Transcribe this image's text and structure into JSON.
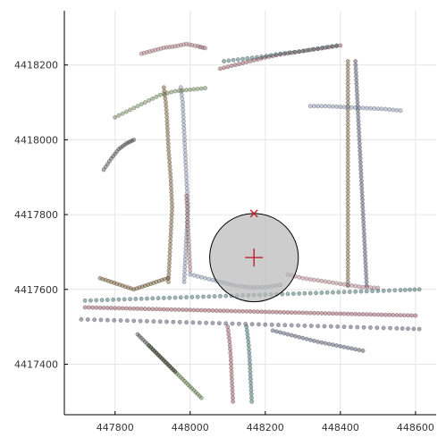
{
  "chart_data": {
    "type": "scatter",
    "title": "",
    "xlabel": "",
    "ylabel": "",
    "xlim": [
      447665,
      448655
    ],
    "ylim": [
      4417265,
      4418345
    ],
    "grid": true,
    "legend": "none",
    "x_ticks": [
      447800,
      448000,
      448200,
      448400,
      448600
    ],
    "y_ticks": [
      4417400,
      4417600,
      4417800,
      4418000,
      4418200
    ],
    "x_tick_labels": [
      "447800",
      "448000",
      "448200",
      "448400",
      "448600"
    ],
    "y_tick_labels": [
      "4417400",
      "4417600",
      "4417800",
      "4418000",
      "4418200"
    ],
    "point_colors": [
      "#8f3b4a",
      "#1f5c5a",
      "#3a3a5a",
      "#6b4a1a",
      "#7a8aa8",
      "#b07080",
      "#5a7a3a",
      "#404040"
    ],
    "series": [
      {
        "values": [
          [
            447720,
            4417552
          ],
          [
            447760,
            4417551
          ],
          [
            447800,
            4417550
          ],
          [
            447840,
            4417549
          ],
          [
            447880,
            4417548
          ],
          [
            447920,
            4417547
          ],
          [
            447960,
            4417546
          ],
          [
            448000,
            4417545
          ],
          [
            448040,
            4417544
          ],
          [
            448080,
            4417543
          ],
          [
            448120,
            4417542
          ],
          [
            448160,
            4417541
          ],
          [
            448200,
            4417540
          ],
          [
            448240,
            4417539
          ],
          [
            448280,
            4417538
          ],
          [
            448320,
            4417537
          ],
          [
            448360,
            4417536
          ],
          [
            448400,
            4417535
          ],
          [
            448440,
            4417534
          ],
          [
            448480,
            4417533
          ],
          [
            448520,
            4417532
          ],
          [
            448560,
            4417531
          ],
          [
            448600,
            4417530
          ]
        ]
      },
      {
        "values": [
          [
            447720,
            4417570
          ],
          [
            447780,
            4417572
          ],
          [
            447840,
            4417574
          ],
          [
            447900,
            4417576
          ],
          [
            447960,
            4417578
          ],
          [
            448020,
            4417580
          ],
          [
            448080,
            4417582
          ],
          [
            448140,
            4417584
          ],
          [
            448200,
            4417586
          ],
          [
            448260,
            4417588
          ],
          [
            448320,
            4417590
          ],
          [
            448380,
            4417592
          ],
          [
            448440,
            4417594
          ],
          [
            448500,
            4417596
          ],
          [
            448560,
            4417598
          ],
          [
            448610,
            4417600
          ]
        ]
      },
      {
        "values": [
          [
            447710,
            4417520
          ],
          [
            447780,
            4417518
          ],
          [
            447850,
            4417516
          ],
          [
            447920,
            4417514
          ],
          [
            447990,
            4417512
          ],
          [
            448060,
            4417510
          ],
          [
            448130,
            4417508
          ],
          [
            448200,
            4417506
          ],
          [
            448270,
            4417504
          ],
          [
            448340,
            4417502
          ],
          [
            448410,
            4417500
          ],
          [
            448480,
            4417498
          ],
          [
            448550,
            4417496
          ],
          [
            448610,
            4417494
          ]
        ]
      },
      {
        "values": [
          [
            447930,
            4418140
          ],
          [
            447935,
            4418100
          ],
          [
            447938,
            4418060
          ],
          [
            447940,
            4418020
          ],
          [
            447942,
            4417980
          ],
          [
            447945,
            4417940
          ],
          [
            447948,
            4417900
          ],
          [
            447950,
            4417860
          ],
          [
            447952,
            4417820
          ],
          [
            447950,
            4417780
          ],
          [
            447948,
            4417740
          ],
          [
            447946,
            4417700
          ],
          [
            447944,
            4417660
          ],
          [
            447942,
            4417620
          ]
        ]
      },
      {
        "values": [
          [
            447975,
            4418140
          ],
          [
            447980,
            4418100
          ],
          [
            447982,
            4418060
          ],
          [
            447984,
            4418020
          ],
          [
            447986,
            4417980
          ],
          [
            447988,
            4417940
          ],
          [
            447990,
            4417900
          ],
          [
            447992,
            4417860
          ],
          [
            447994,
            4417820
          ],
          [
            447992,
            4417780
          ],
          [
            447990,
            4417740
          ],
          [
            447988,
            4417700
          ],
          [
            447986,
            4417660
          ],
          [
            447984,
            4417620
          ]
        ]
      },
      {
        "values": [
          [
            447870,
            4418230
          ],
          [
            447900,
            4418238
          ],
          [
            447930,
            4418246
          ],
          [
            447960,
            4418250
          ],
          [
            447990,
            4418256
          ],
          [
            448020,
            4418250
          ],
          [
            448040,
            4418245
          ]
        ]
      },
      {
        "values": [
          [
            447800,
            4418060
          ],
          [
            447840,
            4418080
          ],
          [
            447880,
            4418100
          ],
          [
            447920,
            4418120
          ],
          [
            447960,
            4418130
          ],
          [
            448000,
            4418134
          ],
          [
            448040,
            4418138
          ]
        ]
      },
      {
        "values": [
          [
            447770,
            4417920
          ],
          [
            447790,
            4417950
          ],
          [
            447810,
            4417975
          ],
          [
            447830,
            4417990
          ],
          [
            447850,
            4418000
          ]
        ]
      },
      {
        "values": [
          [
            448080,
            4418190
          ],
          [
            448120,
            4418200
          ],
          [
            448160,
            4418210
          ],
          [
            448200,
            4418220
          ],
          [
            448240,
            4418228
          ],
          [
            448280,
            4418234
          ],
          [
            448320,
            4418240
          ],
          [
            448360,
            4418246
          ],
          [
            448400,
            4418252
          ]
        ]
      },
      {
        "values": [
          [
            448090,
            4418210
          ],
          [
            448140,
            4418216
          ],
          [
            448190,
            4418222
          ],
          [
            448240,
            4418230
          ],
          [
            448290,
            4418236
          ],
          [
            448340,
            4418244
          ],
          [
            448390,
            4418252
          ]
        ]
      },
      {
        "values": [
          [
            448440,
            4418210
          ],
          [
            448442,
            4418170
          ],
          [
            448444,
            4418130
          ],
          [
            448446,
            4418090
          ],
          [
            448448,
            4418050
          ],
          [
            448450,
            4418010
          ],
          [
            448452,
            4417970
          ],
          [
            448454,
            4417930
          ],
          [
            448456,
            4417890
          ],
          [
            448458,
            4417850
          ],
          [
            448460,
            4417810
          ],
          [
            448462,
            4417770
          ],
          [
            448464,
            4417730
          ],
          [
            448466,
            4417690
          ],
          [
            448468,
            4417650
          ],
          [
            448470,
            4417610
          ]
        ]
      },
      {
        "values": [
          [
            448420,
            4418210
          ],
          [
            448420,
            4418170
          ],
          [
            448420,
            4418130
          ],
          [
            448420,
            4418090
          ],
          [
            448420,
            4418050
          ],
          [
            448420,
            4418010
          ],
          [
            448420,
            4417970
          ],
          [
            448420,
            4417930
          ],
          [
            448420,
            4417890
          ],
          [
            448420,
            4417850
          ],
          [
            448420,
            4417810
          ],
          [
            448420,
            4417770
          ],
          [
            448420,
            4417730
          ],
          [
            448420,
            4417690
          ],
          [
            448420,
            4417650
          ],
          [
            448420,
            4417610
          ]
        ]
      },
      {
        "values": [
          [
            448320,
            4418090
          ],
          [
            448360,
            4418090
          ],
          [
            448400,
            4418088
          ],
          [
            448440,
            4418086
          ],
          [
            448480,
            4418084
          ],
          [
            448520,
            4418082
          ],
          [
            448560,
            4418078
          ]
        ]
      },
      {
        "values": [
          [
            447990,
            4417850
          ],
          [
            447992,
            4417810
          ],
          [
            447994,
            4417770
          ],
          [
            447996,
            4417730
          ],
          [
            447998,
            4417690
          ],
          [
            448000,
            4417650
          ]
        ]
      },
      {
        "values": [
          [
            447890,
            4417450
          ],
          [
            447910,
            4417430
          ],
          [
            447930,
            4417410
          ],
          [
            447950,
            4417390
          ],
          [
            447970,
            4417370
          ],
          [
            447990,
            4417350
          ],
          [
            448010,
            4417330
          ],
          [
            448030,
            4417310
          ]
        ]
      },
      {
        "values": [
          [
            447860,
            4417480
          ],
          [
            447880,
            4417460
          ],
          [
            447900,
            4417440
          ],
          [
            447920,
            4417420
          ],
          [
            447940,
            4417400
          ],
          [
            447960,
            4417380
          ]
        ]
      },
      {
        "values": [
          [
            448100,
            4417500
          ],
          [
            448105,
            4417460
          ],
          [
            448108,
            4417420
          ],
          [
            448110,
            4417380
          ],
          [
            448112,
            4417340
          ],
          [
            448114,
            4417300
          ]
        ]
      },
      {
        "values": [
          [
            448150,
            4417500
          ],
          [
            448155,
            4417460
          ],
          [
            448158,
            4417420
          ],
          [
            448160,
            4417380
          ],
          [
            448162,
            4417340
          ],
          [
            448164,
            4417300
          ]
        ]
      },
      {
        "values": [
          [
            448220,
            4417490
          ],
          [
            448260,
            4417480
          ],
          [
            448300,
            4417470
          ],
          [
            448340,
            4417460
          ],
          [
            448380,
            4417452
          ],
          [
            448420,
            4417444
          ],
          [
            448460,
            4417436
          ]
        ]
      },
      {
        "values": [
          [
            447760,
            4417630
          ],
          [
            447790,
            4417620
          ],
          [
            447820,
            4417610
          ],
          [
            447850,
            4417600
          ],
          [
            447880,
            4417610
          ],
          [
            447910,
            4417620
          ],
          [
            447940,
            4417630
          ]
        ]
      },
      {
        "values": [
          [
            448000,
            4417640
          ],
          [
            448040,
            4417630
          ],
          [
            448080,
            4417620
          ],
          [
            448120,
            4417610
          ],
          [
            448160,
            4417606
          ],
          [
            448200,
            4417606
          ],
          [
            448240,
            4417612
          ]
        ]
      },
      {
        "values": [
          [
            448260,
            4417640
          ],
          [
            448300,
            4417630
          ],
          [
            448340,
            4417624
          ],
          [
            448380,
            4417618
          ],
          [
            448420,
            4417612
          ],
          [
            448460,
            4417606
          ],
          [
            448500,
            4417604
          ]
        ]
      }
    ],
    "circle": {
      "cx": 448170,
      "cy": 4417685,
      "r": 118
    },
    "plus_marker": {
      "x": 448170,
      "y": 4417685
    },
    "x_marker": {
      "x": 448170,
      "y": 4417803
    }
  }
}
